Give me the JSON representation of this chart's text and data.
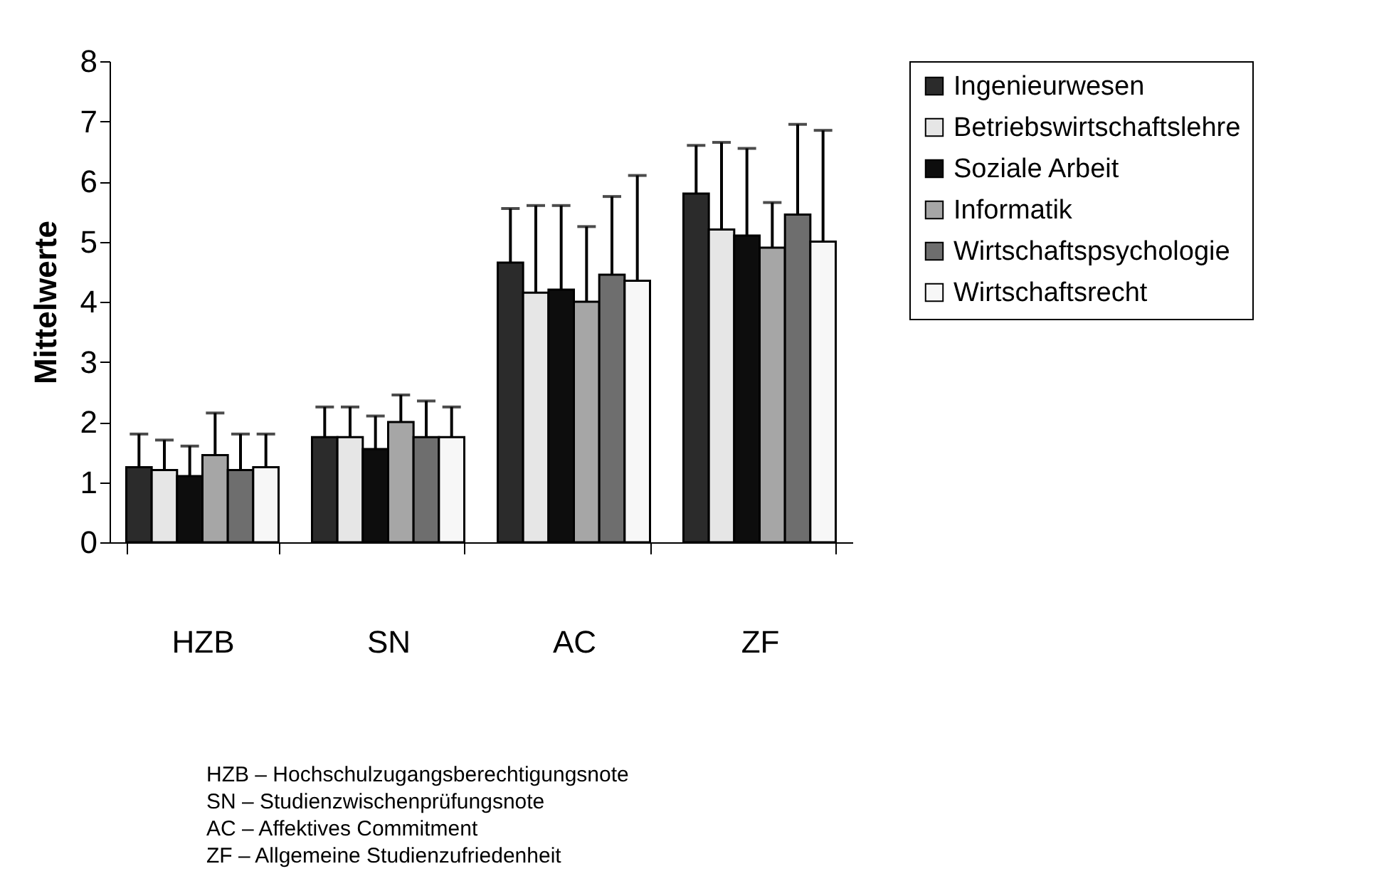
{
  "chart_data": {
    "type": "bar",
    "ylabel": "Mittelwerte",
    "categories": [
      "HZB",
      "SN",
      "AC",
      "ZF"
    ],
    "ylim": [
      0,
      8
    ],
    "yticks": [
      0,
      1,
      2,
      3,
      4,
      5,
      6,
      7,
      8
    ],
    "legend": "top right",
    "series": [
      {
        "name": "Ingenieurwesen",
        "color": "#2b2b2b",
        "values": [
          1.25,
          1.75,
          4.65,
          5.8
        ],
        "errors": [
          [
            1.25,
            1.8
          ],
          [
            1.75,
            2.25
          ],
          [
            4.65,
            5.55
          ],
          [
            5.8,
            6.6
          ]
        ]
      },
      {
        "name": "Betriebswirtschaftslehre",
        "color": "#e6e6e6",
        "values": [
          1.2,
          1.75,
          4.15,
          5.2
        ],
        "errors": [
          [
            1.2,
            1.7
          ],
          [
            1.75,
            2.25
          ],
          [
            4.15,
            5.6
          ],
          [
            5.2,
            6.65
          ]
        ]
      },
      {
        "name": "Soziale Arbeit",
        "color": "#0d0d0d",
        "values": [
          1.1,
          1.55,
          4.2,
          5.1
        ],
        "errors": [
          [
            1.1,
            1.6
          ],
          [
            1.55,
            2.1
          ],
          [
            4.2,
            5.6
          ],
          [
            5.1,
            6.55
          ]
        ]
      },
      {
        "name": "Informatik",
        "color": "#a6a6a6",
        "values": [
          1.45,
          2.0,
          4.0,
          4.9
        ],
        "errors": [
          [
            1.45,
            2.15
          ],
          [
            2.0,
            2.45
          ],
          [
            4.0,
            5.25
          ],
          [
            4.9,
            5.65
          ]
        ]
      },
      {
        "name": "Wirtschaftspsychologie",
        "color": "#6e6e6e",
        "values": [
          1.2,
          1.75,
          4.45,
          5.45
        ],
        "errors": [
          [
            1.2,
            1.8
          ],
          [
            1.75,
            2.35
          ],
          [
            4.45,
            5.75
          ],
          [
            5.45,
            6.95
          ]
        ]
      },
      {
        "name": "Wirtschaftsrecht",
        "color": "#f7f7f7",
        "values": [
          1.25,
          1.75,
          4.35,
          5.0
        ],
        "errors": [
          [
            1.25,
            1.8
          ],
          [
            1.75,
            2.25
          ],
          [
            4.35,
            6.1
          ],
          [
            5.0,
            6.85
          ]
        ]
      }
    ],
    "annotations": [
      "HZB – Hochschulzugangsberechtigungsnote",
      "SN – Studienzwischenprüfungsnote",
      "AC – Affektives Commitment",
      "ZF – Allgemeine Studienzufriedenheit"
    ]
  }
}
